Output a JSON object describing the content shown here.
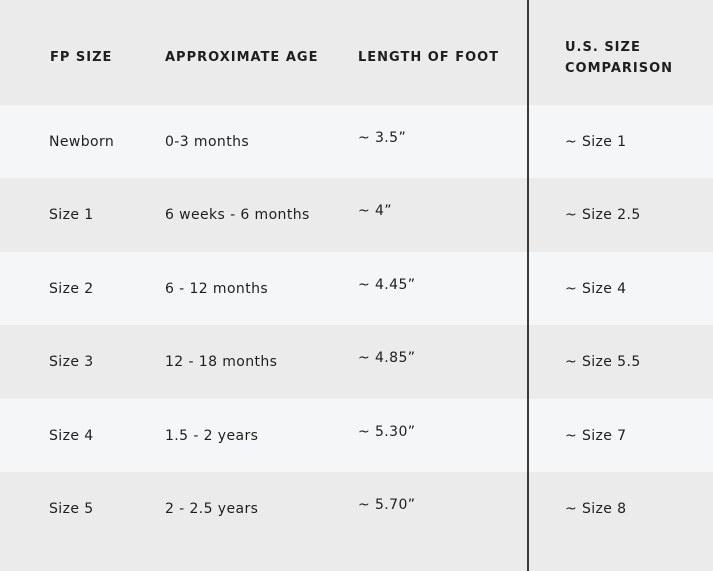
{
  "table": {
    "headers": [
      "FP SIZE",
      "APPROXIMATE AGE",
      "LENGTH OF FOOT",
      "U.S. SIZE",
      "COMPARISON"
    ],
    "rows": [
      {
        "fp_size": "Newborn",
        "age": "0-3 months",
        "length": "~ 3.5”",
        "us_size": "~ Size 1"
      },
      {
        "fp_size": "Size 1",
        "age": "6 weeks - 6 months",
        "length": "~ 4”",
        "us_size": "~ Size 2.5"
      },
      {
        "fp_size": "Size 2",
        "age": "6 - 12 months",
        "length": "~ 4.45”",
        "us_size": "~ Size 4"
      },
      {
        "fp_size": "Size 3",
        "age": "12 - 18 months",
        "length": "~ 4.85”",
        "us_size": "~ Size 5.5"
      },
      {
        "fp_size": "Size 4",
        "age": "1.5 - 2 years",
        "length": "~ 5.30”",
        "us_size": "~ Size 7"
      },
      {
        "fp_size": "Size 5",
        "age": "2 - 2.5 years",
        "length": "~ 5.70”",
        "us_size": "~ Size 8"
      }
    ]
  },
  "colors": {
    "row_grey": "#ebebeb",
    "row_light": "#f5f6f7",
    "divider": "#3a3a3a",
    "text": "#1e1e1e"
  }
}
